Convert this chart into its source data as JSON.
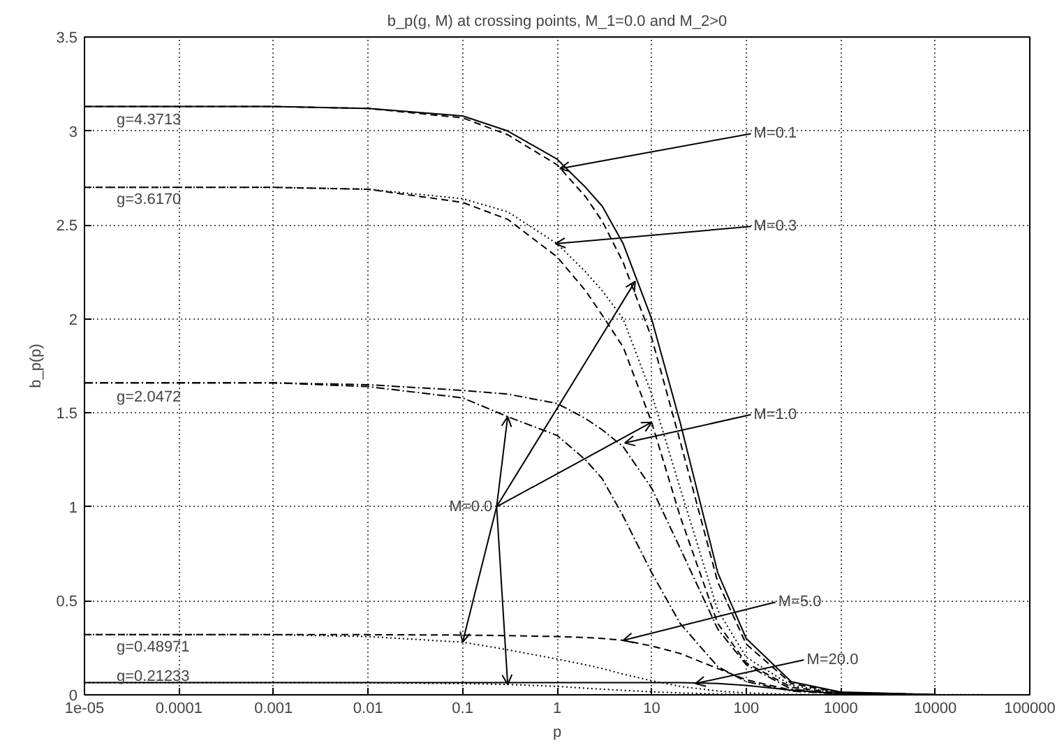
{
  "chart_data": {
    "type": "line",
    "title": "b_p(g, M) at crossing points, M_1=0.0 and M_2>0",
    "xlabel": "p",
    "ylabel": "b_p(p)",
    "x": [
      1e-05,
      0.001,
      0.01,
      0.1,
      0.3,
      1,
      2,
      3,
      5,
      10,
      20,
      50,
      100,
      300,
      1000,
      10000,
      100000
    ],
    "series": [
      {
        "color": "#000000",
        "line_style": "solid",
        "values": [
          3.13,
          3.13,
          3.12,
          3.08,
          3.0,
          2.85,
          2.7,
          2.6,
          2.4,
          2.0,
          1.45,
          0.65,
          0.3,
          0.07,
          0.015,
          0.001,
          0
        ]
      },
      {
        "color": "#000000",
        "line_style": "dashed",
        "values": [
          3.13,
          3.13,
          3.12,
          3.07,
          2.98,
          2.82,
          2.65,
          2.52,
          2.3,
          1.9,
          1.35,
          0.6,
          0.27,
          0.06,
          0.012,
          0.002,
          null
        ]
      },
      {
        "color": "#000000",
        "line_style": "dotted",
        "values": [
          2.7,
          2.7,
          2.69,
          2.64,
          2.57,
          2.4,
          2.25,
          2.15,
          2.0,
          1.6,
          1.1,
          0.45,
          0.2,
          0.05,
          0.01,
          0.001,
          0
        ]
      },
      {
        "color": "#000000",
        "line_style": "dashed",
        "values": [
          2.7,
          2.7,
          2.69,
          2.62,
          2.53,
          2.33,
          2.15,
          2.02,
          1.85,
          1.45,
          0.95,
          0.38,
          0.17,
          0.04,
          0.008,
          0.002,
          null
        ]
      },
      {
        "color": "#000000",
        "line_style": "dashdot",
        "values": [
          1.66,
          1.66,
          1.65,
          1.62,
          1.6,
          1.55,
          1.47,
          1.41,
          1.32,
          1.1,
          0.78,
          0.35,
          0.16,
          0.03,
          0.006,
          0,
          0
        ]
      },
      {
        "color": "#000000",
        "line_style": "dashdot",
        "values": [
          1.66,
          1.66,
          1.64,
          1.58,
          1.48,
          1.38,
          1.25,
          1.15,
          0.95,
          0.65,
          0.38,
          0.15,
          0.07,
          0.02,
          0.004,
          0,
          null
        ]
      },
      {
        "color": "#000000",
        "line_style": "dashed",
        "values": [
          0.32,
          0.32,
          0.32,
          0.318,
          0.315,
          0.31,
          0.305,
          0.3,
          0.29,
          0.26,
          0.22,
          0.14,
          0.08,
          0.025,
          0.006,
          0,
          0
        ]
      },
      {
        "color": "#000000",
        "line_style": "dotted",
        "values": [
          0.32,
          0.32,
          0.31,
          0.28,
          0.24,
          0.19,
          0.16,
          0.14,
          0.11,
          0.075,
          0.045,
          0.02,
          0.01,
          0.003,
          0,
          null,
          null
        ]
      },
      {
        "color": "#000000",
        "line_style": "solid",
        "values": [
          0.065,
          0.065,
          0.065,
          0.065,
          0.065,
          0.065,
          0.065,
          0.065,
          0.065,
          0.065,
          0.065,
          0.06,
          0.05,
          0.025,
          0.006,
          0,
          0
        ]
      },
      {
        "color": "#000000",
        "line_style": "dotted",
        "values": [
          0.065,
          0.065,
          0.064,
          0.06,
          0.055,
          0.045,
          0.035,
          0.03,
          0.024,
          0.016,
          0.01,
          0.005,
          0.002,
          0,
          null,
          null,
          null
        ]
      }
    ],
    "annotations": [
      "g=4.3713",
      "g=3.6170",
      "g=2.0472",
      "g=0.48971",
      "g=0.21233",
      {
        "text": "M=0.1",
        "x": 1.07,
        "y": 2.8
      },
      {
        "text": "M=0.3",
        "x": 0.96,
        "y": 2.4
      },
      {
        "text": "M=1.0",
        "x": 5.2,
        "y": 1.34
      },
      {
        "text": "M=5.0",
        "x": 5.0,
        "y": 0.29
      },
      {
        "text": "M=20.0",
        "x": 29,
        "y": 0.06
      },
      {
        "text": "M=0.0",
        "x": 6.7,
        "y": 2.2
      }
    ],
    "xlim": [
      1e-05,
      100000
    ],
    "ylim": [
      0,
      3.5
    ],
    "xticks": [
      {
        "value": 1e-05,
        "label": "1e-05"
      },
      0.0001,
      0.001,
      0.01,
      0.1,
      1,
      10,
      100,
      1000,
      10000,
      100000
    ],
    "yticks": [
      0,
      0.5,
      1,
      1.5,
      2,
      2.5,
      3,
      3.5
    ],
    "log": "x",
    "grid": true
  }
}
